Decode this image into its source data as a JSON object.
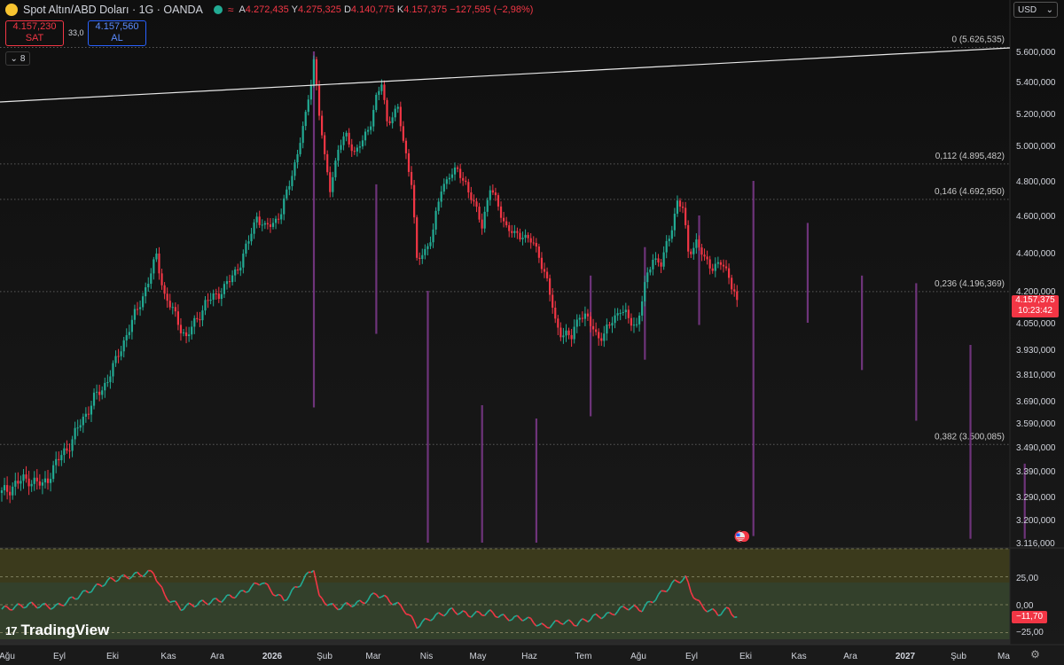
{
  "header": {
    "symbol": "Spot Altın/ABD Doları · 1G · OANDA",
    "open_label": "A",
    "open": "4.272,435",
    "high_label": "Y",
    "high": "4.275,325",
    "low_label": "D",
    "low": "4.140,775",
    "close_label": "K",
    "close": "4.157,375",
    "change": "−127,595 (−2,98%)"
  },
  "trade": {
    "sell_price": "4.157,230",
    "sell_label": "SAT",
    "spread": "33,0",
    "buy_price": "4.157,560",
    "buy_label": "AL"
  },
  "indicators_toggle": "8",
  "currency": "USD",
  "last_price_tag": {
    "price": "4.157,375",
    "countdown": "10:23:42"
  },
  "rsi_tag": "−11,70",
  "branding": "TradingView",
  "colors": {
    "up": "#22ab94",
    "down": "#f23645",
    "volume": "#7e3a8c",
    "background": "#141414"
  },
  "chart_data": {
    "type": "candlestick",
    "price_ticks": [
      "5.600,000",
      "5.400,000",
      "5.200,000",
      "5.000,000",
      "4.800,000",
      "4.600,000",
      "4.400,000",
      "4.200,000",
      "4.050,000",
      "3.930,000",
      "3.810,000",
      "3.690,000",
      "3.590,000",
      "3.490,000",
      "3.390,000",
      "3.290,000",
      "3.200,000",
      "3.116,000"
    ],
    "fib_levels": [
      {
        "label": "0 (5.626,535)",
        "value": 5626.535
      },
      {
        "label": "0,112 (4.895,482)",
        "value": 4895.482
      },
      {
        "label": "0,146 (4.692,950)",
        "value": 4692.95
      },
      {
        "label": "0,236 (4.196,369)",
        "value": 4196.369
      },
      {
        "label": "0,382 (3.500,085)",
        "value": 3500.085
      }
    ],
    "x_ticks": [
      "Ağu",
      "Eyl",
      "Eki",
      "Kas",
      "Ara",
      "2026",
      "Şub",
      "Mar",
      "Nis",
      "May",
      "Haz",
      "Tem",
      "Ağu",
      "Eyl",
      "Eki",
      "Kas",
      "Ara",
      "2027",
      "Şub",
      "Ma"
    ],
    "oscillator_ticks": [
      "25,00",
      "0,00",
      "−25,00"
    ],
    "price_path": [
      [
        0,
        3300
      ],
      [
        5,
        3340
      ],
      [
        10,
        3360
      ],
      [
        15,
        3330
      ],
      [
        20,
        3420
      ],
      [
        26,
        3520
      ],
      [
        30,
        3610
      ],
      [
        34,
        3700
      ],
      [
        37,
        3740
      ],
      [
        42,
        3870
      ],
      [
        46,
        4000
      ],
      [
        50,
        4110
      ],
      [
        54,
        4250
      ],
      [
        57,
        4380
      ],
      [
        60,
        4180
      ],
      [
        64,
        4080
      ],
      [
        68,
        3980
      ],
      [
        72,
        4070
      ],
      [
        75,
        4140
      ],
      [
        80,
        4190
      ],
      [
        84,
        4250
      ],
      [
        88,
        4350
      ],
      [
        91,
        4460
      ],
      [
        94,
        4600
      ],
      [
        97,
        4530
      ],
      [
        100,
        4560
      ],
      [
        103,
        4620
      ],
      [
        106,
        4780
      ],
      [
        109,
        4960
      ],
      [
        112,
        5180
      ],
      [
        114,
        5400
      ],
      [
        115,
        5550
      ],
      [
        117,
        5200
      ],
      [
        119,
        4920
      ],
      [
        121,
        4760
      ],
      [
        124,
        4980
      ],
      [
        127,
        5060
      ],
      [
        130,
        4960
      ],
      [
        133,
        5020
      ],
      [
        136,
        5150
      ],
      [
        138,
        5300
      ],
      [
        140,
        5380
      ],
      [
        142,
        5150
      ],
      [
        144,
        5190
      ],
      [
        146,
        5230
      ],
      [
        148,
        5020
      ],
      [
        151,
        4800
      ],
      [
        153,
        4350
      ],
      [
        156,
        4410
      ],
      [
        159,
        4520
      ],
      [
        162,
        4750
      ],
      [
        165,
        4840
      ],
      [
        168,
        4850
      ],
      [
        171,
        4790
      ],
      [
        174,
        4660
      ],
      [
        177,
        4550
      ],
      [
        180,
        4760
      ],
      [
        183,
        4650
      ],
      [
        186,
        4540
      ],
      [
        189,
        4490
      ],
      [
        192,
        4500
      ],
      [
        195,
        4460
      ],
      [
        198,
        4390
      ],
      [
        201,
        4250
      ],
      [
        204,
        4050
      ],
      [
        207,
        4000
      ],
      [
        210,
        3980
      ],
      [
        213,
        4100
      ],
      [
        216,
        4060
      ],
      [
        219,
        4000
      ],
      [
        222,
        3990
      ],
      [
        225,
        4060
      ],
      [
        228,
        4120
      ],
      [
        231,
        4060
      ],
      [
        234,
        4040
      ],
      [
        237,
        4220
      ],
      [
        240,
        4380
      ],
      [
        243,
        4340
      ],
      [
        246,
        4480
      ],
      [
        249,
        4680
      ],
      [
        251,
        4640
      ],
      [
        253,
        4400
      ],
      [
        256,
        4460
      ],
      [
        259,
        4360
      ],
      [
        262,
        4330
      ],
      [
        265,
        4340
      ],
      [
        268,
        4280
      ],
      [
        271,
        4157
      ]
    ],
    "volume_bars": [
      {
        "x": 115,
        "top": 5600,
        "bottom": 3660
      },
      {
        "x": 138,
        "top": 4780,
        "bottom": 4000
      },
      {
        "x": 157,
        "top": 4200,
        "bottom": 3116
      },
      {
        "x": 177,
        "top": 3670,
        "bottom": 3116
      },
      {
        "x": 197,
        "top": 3610,
        "bottom": 3116
      },
      {
        "x": 217,
        "top": 4280,
        "bottom": 3620
      },
      {
        "x": 237,
        "top": 4430,
        "bottom": 3880
      },
      {
        "x": 257,
        "top": 4600,
        "bottom": 4040
      },
      {
        "x": 277,
        "top": 4800,
        "bottom": 3140
      },
      {
        "x": 297,
        "top": 4560,
        "bottom": 4050
      },
      {
        "x": 317,
        "top": 4280,
        "bottom": 3830
      },
      {
        "x": 337,
        "top": 4240,
        "bottom": 3600
      },
      {
        "x": 357,
        "top": 3950,
        "bottom": 3130
      },
      {
        "x": 377,
        "top": 3420,
        "bottom": 3130
      }
    ],
    "rsi_path": [
      [
        0,
        -4
      ],
      [
        10,
        0
      ],
      [
        20,
        -2
      ],
      [
        30,
        10
      ],
      [
        40,
        22
      ],
      [
        50,
        27
      ],
      [
        56,
        29
      ],
      [
        60,
        8
      ],
      [
        66,
        -3
      ],
      [
        72,
        1
      ],
      [
        80,
        4
      ],
      [
        88,
        10
      ],
      [
        96,
        21
      ],
      [
        99,
        13
      ],
      [
        104,
        4
      ],
      [
        110,
        19
      ],
      [
        115,
        33
      ],
      [
        117,
        6
      ],
      [
        123,
        -3
      ],
      [
        128,
        0
      ],
      [
        133,
        2
      ],
      [
        138,
        10
      ],
      [
        142,
        5
      ],
      [
        148,
        -3
      ],
      [
        153,
        -19
      ],
      [
        158,
        -12
      ],
      [
        166,
        -5
      ],
      [
        172,
        -9
      ],
      [
        180,
        -7
      ],
      [
        186,
        -12
      ],
      [
        193,
        -12
      ],
      [
        200,
        -20
      ],
      [
        206,
        -15
      ],
      [
        212,
        -17
      ],
      [
        218,
        -11
      ],
      [
        224,
        -9
      ],
      [
        230,
        -2
      ],
      [
        236,
        -4
      ],
      [
        242,
        8
      ],
      [
        248,
        20
      ],
      [
        252,
        24
      ],
      [
        254,
        12
      ],
      [
        258,
        -2
      ],
      [
        264,
        -8
      ],
      [
        268,
        -4
      ],
      [
        271,
        -12
      ]
    ]
  }
}
